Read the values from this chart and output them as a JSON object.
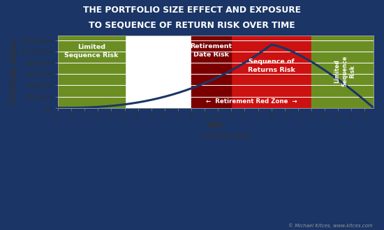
{
  "title_line1": "THE PORTFOLIO SIZE EFFECT AND EXPOSURE",
  "title_line2": "TO SEQUENCE OF RETURN RISK OVER TIME",
  "xlabel": "Age",
  "ylabel": "Portfolio Value",
  "yticks": [
    0,
    200000,
    400000,
    600000,
    800000,
    1000000,
    1200000
  ],
  "ytick_labels": [
    "$0",
    "$200,000",
    "$400,000",
    "$600,000",
    "$800,000",
    "$1,000,000",
    "$1,200,000"
  ],
  "xticks": [
    25,
    28,
    31,
    34,
    37,
    40,
    43,
    46,
    49,
    52,
    55,
    58,
    61,
    64,
    67,
    70,
    73,
    76,
    79,
    82,
    85,
    88,
    91,
    94
  ],
  "xlim": [
    25,
    96
  ],
  "ylim": [
    0,
    1280000
  ],
  "age_start": 25,
  "age_end": 96,
  "peak_age": 73,
  "peak_value": 1120000,
  "green_zone1_start": 25,
  "green_zone1_end": 40,
  "dark_red_zone_start": 55,
  "dark_red_zone_end": 64,
  "red_zone_start": 64,
  "red_zone_end": 82,
  "green_zone2_start": 82,
  "green_zone2_end": 96,
  "green_color": "#6B8E23",
  "red_color": "#CC1111",
  "dark_red_color": "#7A0000",
  "line_color": "#1a3566",
  "plot_bg_color": "#FFFFFF",
  "fig_bg_color": "#1a3566",
  "title_color": "#1a3566",
  "legend_label": "Portfolio Value",
  "copyright_text": "© Michael Kitces, www.kitces.com",
  "label_limited_seq_risk": "Limited\nSequence Risk",
  "label_retirement_date_risk": "Retirement\nDate Risk",
  "label_sequence_of_returns": "Sequence of\nReturns Risk",
  "label_retirement_red_zone": "←  Retirement Red Zone  →",
  "label_limited_seq_risk_right": "Limited\nSequence\nRisk"
}
